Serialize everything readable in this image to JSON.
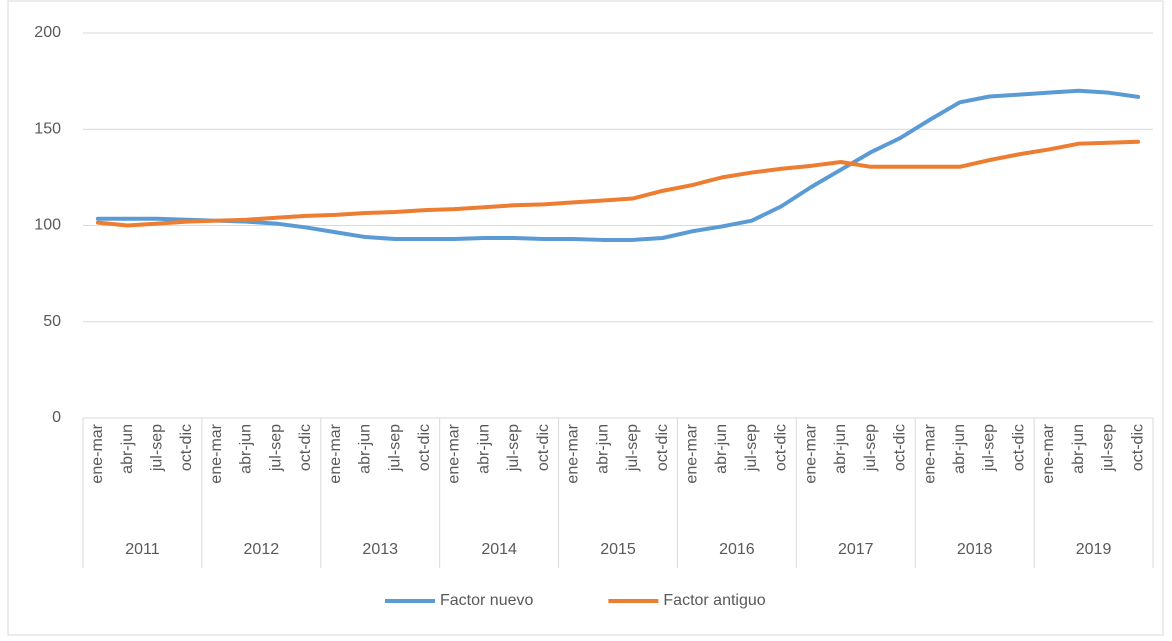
{
  "chart_data": {
    "type": "line",
    "categories": [
      "ene-mar",
      "abr-jun",
      "jul-sep",
      "oct-dic",
      "ene-mar",
      "abr-jun",
      "jul-sep",
      "oct-dic",
      "ene-mar",
      "abr-jun",
      "jul-sep",
      "oct-dic",
      "ene-mar",
      "abr-jun",
      "jul-sep",
      "oct-dic",
      "ene-mar",
      "abr-jun",
      "jul-sep",
      "oct-dic",
      "ene-mar",
      "abr-jun",
      "jul-sep",
      "oct-dic",
      "ene-mar",
      "abr-jun",
      "jul-sep",
      "oct-dic",
      "ene-mar",
      "abr-jun",
      "jul-sep",
      "oct-dic",
      "ene-mar",
      "abr-jun",
      "jul-sep",
      "oct-dic"
    ],
    "groups": [
      "2011",
      "2012",
      "2013",
      "2014",
      "2015",
      "2016",
      "2017",
      "2018",
      "2019"
    ],
    "series": [
      {
        "name": "Factor nuevo",
        "color": "#5b9bd5",
        "values": [
          103.5,
          103.5,
          103.5,
          103,
          102.5,
          102,
          101,
          99,
          96.5,
          94,
          93,
          93,
          93,
          93.5,
          93.5,
          93,
          93,
          92.5,
          92.5,
          93.5,
          97,
          99.5,
          102.5,
          110,
          120,
          129,
          138,
          145.5,
          155,
          164,
          167,
          168,
          169,
          170,
          169,
          166.8
        ]
      },
      {
        "name": "Factor antiguo",
        "color": "#ed7d31",
        "values": [
          101.5,
          100,
          101,
          102,
          102.5,
          103,
          104,
          105,
          105.5,
          106.5,
          107,
          108,
          108.5,
          109.5,
          110.5,
          111,
          112,
          113,
          114,
          118,
          121,
          125,
          127.5,
          129.5,
          131,
          133,
          130.5,
          130.5,
          130.5,
          130.5,
          134,
          137,
          139.5,
          142.5,
          143,
          143.5
        ]
      }
    ],
    "ylim": [
      0,
      200
    ],
    "yticks": [
      0,
      50,
      100,
      150,
      200
    ],
    "grid": true,
    "legend": "bottom"
  }
}
